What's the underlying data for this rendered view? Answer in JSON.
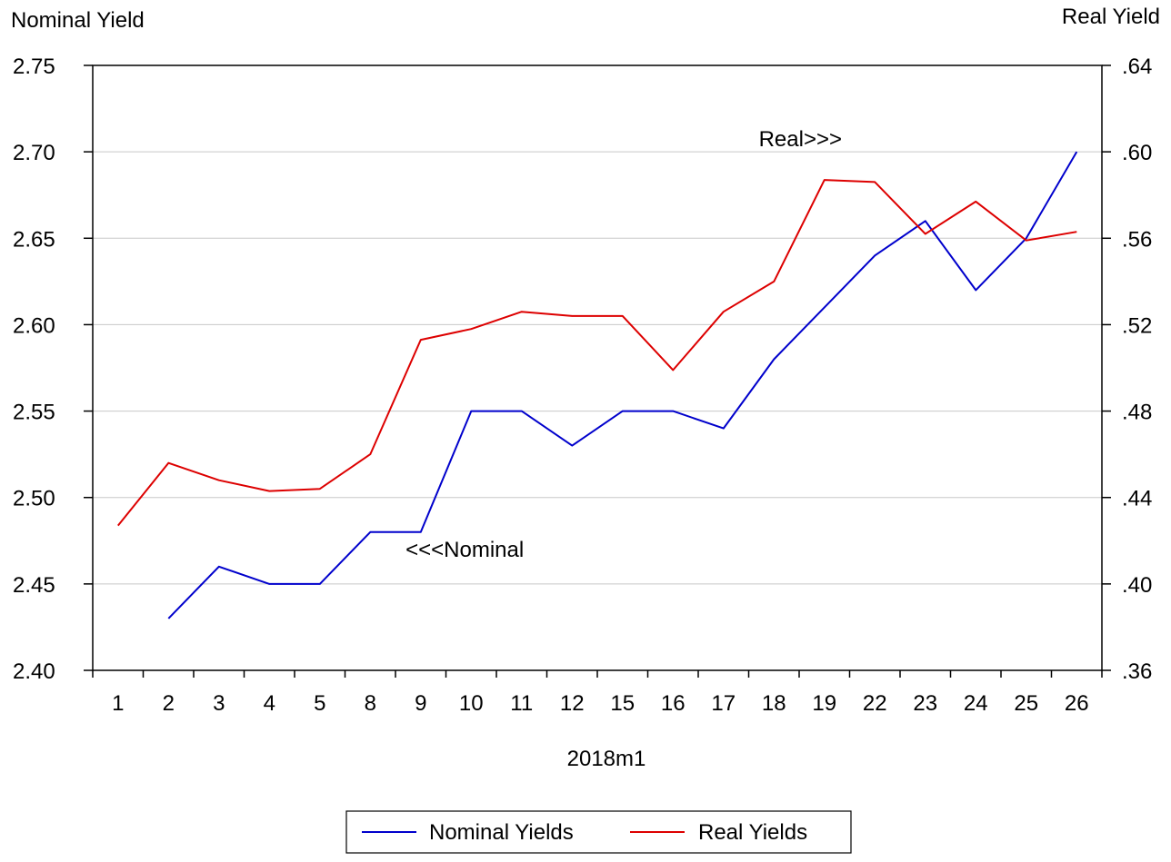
{
  "chart_data": {
    "type": "line",
    "title": "",
    "xlabel": "2018m1",
    "y_left_label": "Nominal Yield",
    "y_right_label": "Real Yield",
    "categories": [
      "1",
      "2",
      "3",
      "4",
      "5",
      "8",
      "9",
      "10",
      "11",
      "12",
      "15",
      "16",
      "17",
      "18",
      "19",
      "22",
      "23",
      "24",
      "25",
      "26"
    ],
    "y_left_range": [
      2.4,
      2.75
    ],
    "y_right_range": [
      0.36,
      0.64
    ],
    "y_left_ticks": [
      {
        "value": 2.75,
        "label": "2.75"
      },
      {
        "value": 2.7,
        "label": "2.70"
      },
      {
        "value": 2.65,
        "label": "2.65"
      },
      {
        "value": 2.6,
        "label": "2.60"
      },
      {
        "value": 2.55,
        "label": "2.55"
      },
      {
        "value": 2.5,
        "label": "2.50"
      },
      {
        "value": 2.45,
        "label": "2.45"
      },
      {
        "value": 2.4,
        "label": "2.40"
      }
    ],
    "y_right_ticks": [
      {
        "value": 0.64,
        "label": ".64"
      },
      {
        "value": 0.6,
        "label": ".60"
      },
      {
        "value": 0.56,
        "label": ".56"
      },
      {
        "value": 0.52,
        "label": ".52"
      },
      {
        "value": 0.48,
        "label": ".48"
      },
      {
        "value": 0.44,
        "label": ".44"
      },
      {
        "value": 0.4,
        "label": ".40"
      },
      {
        "value": 0.36,
        "label": ".36"
      }
    ],
    "grid": true,
    "legend_position": "bottom",
    "series": [
      {
        "name": "Nominal Yields",
        "axis": "left",
        "color": "#0000cc",
        "values": [
          null,
          2.43,
          2.46,
          2.45,
          2.45,
          2.48,
          2.48,
          2.55,
          2.55,
          2.53,
          2.55,
          2.55,
          2.54,
          2.58,
          2.61,
          2.64,
          2.66,
          2.62,
          2.65,
          2.7
        ]
      },
      {
        "name": "Real Yields",
        "axis": "right",
        "color": "#dd0000",
        "values": [
          0.427,
          0.456,
          0.448,
          0.443,
          0.444,
          0.46,
          0.513,
          0.518,
          0.526,
          0.524,
          0.524,
          0.499,
          0.526,
          0.54,
          0.587,
          0.586,
          0.562,
          0.577,
          0.559,
          0.563
        ]
      }
    ],
    "annotations": [
      {
        "text": "Real>>>",
        "category": "18",
        "axis": "right",
        "value": 0.606
      },
      {
        "text": "<<<Nominal",
        "category": "9",
        "axis": "left",
        "value": 2.47
      }
    ]
  }
}
